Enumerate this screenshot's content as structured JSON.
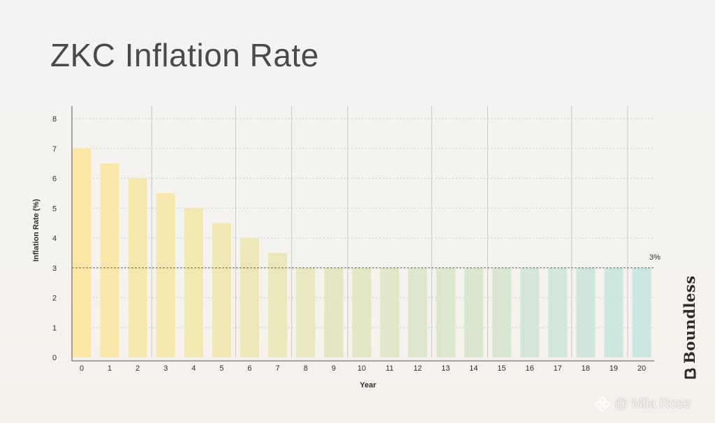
{
  "chart_data": {
    "type": "bar",
    "title": "ZKC Inflation Rate",
    "xlabel": "Year",
    "ylabel": "Inflation Rate (%)",
    "ylim": [
      0,
      8
    ],
    "yticks": [
      0,
      1,
      2,
      3,
      4,
      5,
      6,
      7,
      8
    ],
    "categories": [
      "0",
      "1",
      "2",
      "3",
      "4",
      "5",
      "6",
      "7",
      "8",
      "9",
      "10",
      "11",
      "12",
      "13",
      "14",
      "15",
      "16",
      "17",
      "18",
      "19",
      "20"
    ],
    "values": [
      7,
      6.5,
      6,
      5.5,
      5,
      4.5,
      4,
      3.5,
      3,
      3,
      3,
      3,
      3,
      3,
      3,
      3,
      3,
      3,
      3,
      3,
      3
    ],
    "reference_line": {
      "value": 3,
      "label": "3%",
      "style": "dashed"
    },
    "grid": {
      "horizontal": "dotted",
      "vertical_at": [
        "2",
        "5",
        "7",
        "9",
        "12",
        "14",
        "17",
        "19"
      ]
    },
    "colors": {
      "start": "#fbe8a6",
      "end": "#cbe6e3"
    }
  },
  "branding": {
    "name": "Boundless"
  },
  "watermark": {
    "text": "@ Mila Rose"
  }
}
